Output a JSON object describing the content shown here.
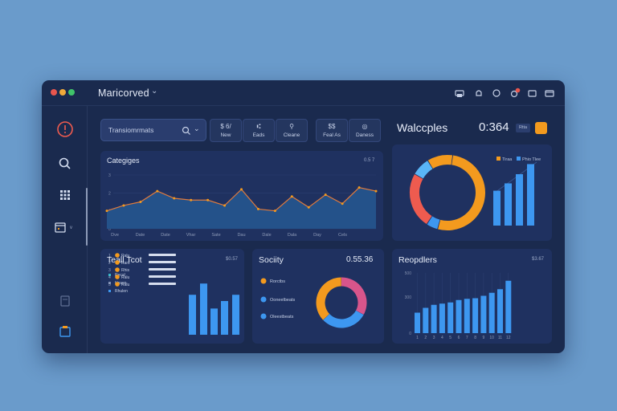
{
  "window": {
    "title": "Maricorved",
    "traffic_lights": [
      "#e8564e",
      "#f0a93a",
      "#40c36a"
    ]
  },
  "titlebar_icons": [
    "printer-icon",
    "bell-icon",
    "alert-icon",
    "notification-icon",
    "copy-icon",
    "window-icon"
  ],
  "sidebar": {
    "items": [
      {
        "icon": "alert-circle-icon"
      },
      {
        "icon": "search-icon"
      },
      {
        "icon": "grid-icon"
      },
      {
        "icon": "calendar-icon"
      },
      {
        "icon": "document-icon"
      },
      {
        "icon": "folder-icon"
      }
    ]
  },
  "search": {
    "value": "Transiomrmats"
  },
  "quick_actions": [
    {
      "icon_text": "$ 6/",
      "label": "New"
    },
    {
      "icon_text": "⑆",
      "label": "Eads"
    },
    {
      "icon_text": "⚲",
      "label": "Cleane"
    },
    {
      "icon_text": "$$",
      "label": "Feal As"
    },
    {
      "icon_text": "◎",
      "label": "Daness"
    }
  ],
  "kpi": {
    "label": "Walccples",
    "value": "0:364",
    "tag": "Rtta"
  },
  "categories_panel": {
    "title": "Categiges",
    "meta": "0.5 7",
    "y_ticks": [
      "3",
      "2",
      "1",
      "0"
    ],
    "x_labels": [
      "Dve",
      "Date",
      "Date",
      "Vhar",
      "Sate",
      "Dau",
      "Dale",
      "Dala",
      "Day",
      "Cels"
    ]
  },
  "donut_panel": {
    "legend": [
      "Tiraa",
      "Phio Tlee"
    ]
  },
  "teal_panel": {
    "title": "Teall Tcot",
    "meta": "$0.57",
    "legend": [
      "Recal",
      "Hnsen",
      "Rhulen"
    ],
    "rows": [
      {
        "num": "1",
        "label": "Ralu"
      },
      {
        "num": "2",
        "label": "Rars"
      },
      {
        "num": "3",
        "label": "Rhis"
      },
      {
        "num": "4",
        "label": "Ralu"
      },
      {
        "num": "5",
        "label": "Ralu"
      }
    ]
  },
  "society_panel": {
    "title": "Sociity",
    "value": "0.55.36",
    "legend": [
      "Rorctbs",
      "Ooneelbeats",
      "Oleestbeats"
    ]
  },
  "reports_panel": {
    "title": "Reopdlers",
    "meta": "$3.67",
    "y_ticks": [
      "500",
      "300",
      "0"
    ],
    "x_labels": [
      "1",
      "2",
      "3",
      "4",
      "5",
      "6",
      "7",
      "8",
      "9",
      "10",
      "11",
      "12"
    ]
  },
  "colors": {
    "accent_orange": "#f39a1e",
    "accent_blue": "#3d97f0",
    "accent_red": "#ee5b4f",
    "accent_pink": "#d7558b",
    "panel_bg": "#1f3160",
    "window_bg": "#1a2a4e"
  },
  "chart_data": [
    {
      "type": "area",
      "title": "Categiges",
      "categories": [
        "Dve",
        "Date",
        "Date",
        "Vhar",
        "Sate",
        "Dau",
        "Dale",
        "Dala",
        "Day",
        "Cels"
      ],
      "x": [
        0,
        1,
        2,
        3,
        4,
        5,
        6,
        7,
        8,
        9,
        10,
        11,
        12,
        13,
        14,
        15,
        16
      ],
      "values": [
        1.0,
        1.3,
        1.5,
        2.1,
        1.7,
        1.6,
        1.6,
        1.3,
        2.2,
        1.1,
        1.0,
        1.8,
        1.2,
        1.9,
        1.4,
        2.3,
        2.1
      ],
      "ylim": [
        0,
        3
      ]
    },
    {
      "type": "pie",
      "labels": [
        "Tiraa",
        "Phio Tlee",
        "Red",
        "Light blue",
        "Orange"
      ],
      "values": [
        52,
        5,
        24,
        8,
        11
      ]
    },
    {
      "type": "bar",
      "values": [
        3.8,
        4.6,
        5.6,
        6.7
      ],
      "ylim": [
        0,
        7
      ]
    },
    {
      "type": "bar",
      "values": [
        3.2,
        4.1,
        2.1,
        2.7,
        3.2
      ],
      "ylim": [
        0,
        4.5
      ]
    },
    {
      "type": "pie",
      "labels": [
        "Rorctbs",
        "Ooneelbeats",
        "Oleestbeats"
      ],
      "values": [
        33,
        30,
        37
      ]
    },
    {
      "type": "bar",
      "title": "Reopdlers",
      "categories": [
        "1",
        "2",
        "3",
        "4",
        "5",
        "6",
        "7",
        "8",
        "9",
        "10",
        "11",
        "12"
      ],
      "values": [
        170,
        210,
        235,
        245,
        255,
        275,
        285,
        290,
        310,
        335,
        365,
        435
      ],
      "ylim": [
        0,
        500
      ]
    }
  ]
}
